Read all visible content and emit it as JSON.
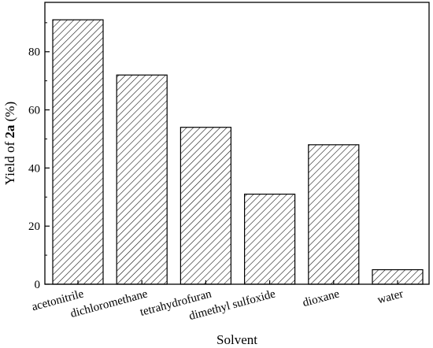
{
  "chart_data": {
    "type": "bar",
    "title": "",
    "xlabel": "Solvent",
    "ylabel": {
      "prefix": "Yield of ",
      "bold": "2a",
      "suffix": " (%)"
    },
    "categories": [
      "acetonitrile",
      "dichloromethane",
      "tetrahydrofuran",
      "dimethyl sulfoxide",
      "dioxane",
      "water"
    ],
    "values": [
      91,
      72,
      54,
      31,
      48,
      5
    ],
    "ylim": [
      0,
      97
    ],
    "yticks": [
      0,
      20,
      40,
      60,
      80
    ],
    "grid": false,
    "bar_fill": "diagonal-hatch",
    "colors": {
      "stroke": "#000000",
      "background": "#ffffff"
    }
  }
}
